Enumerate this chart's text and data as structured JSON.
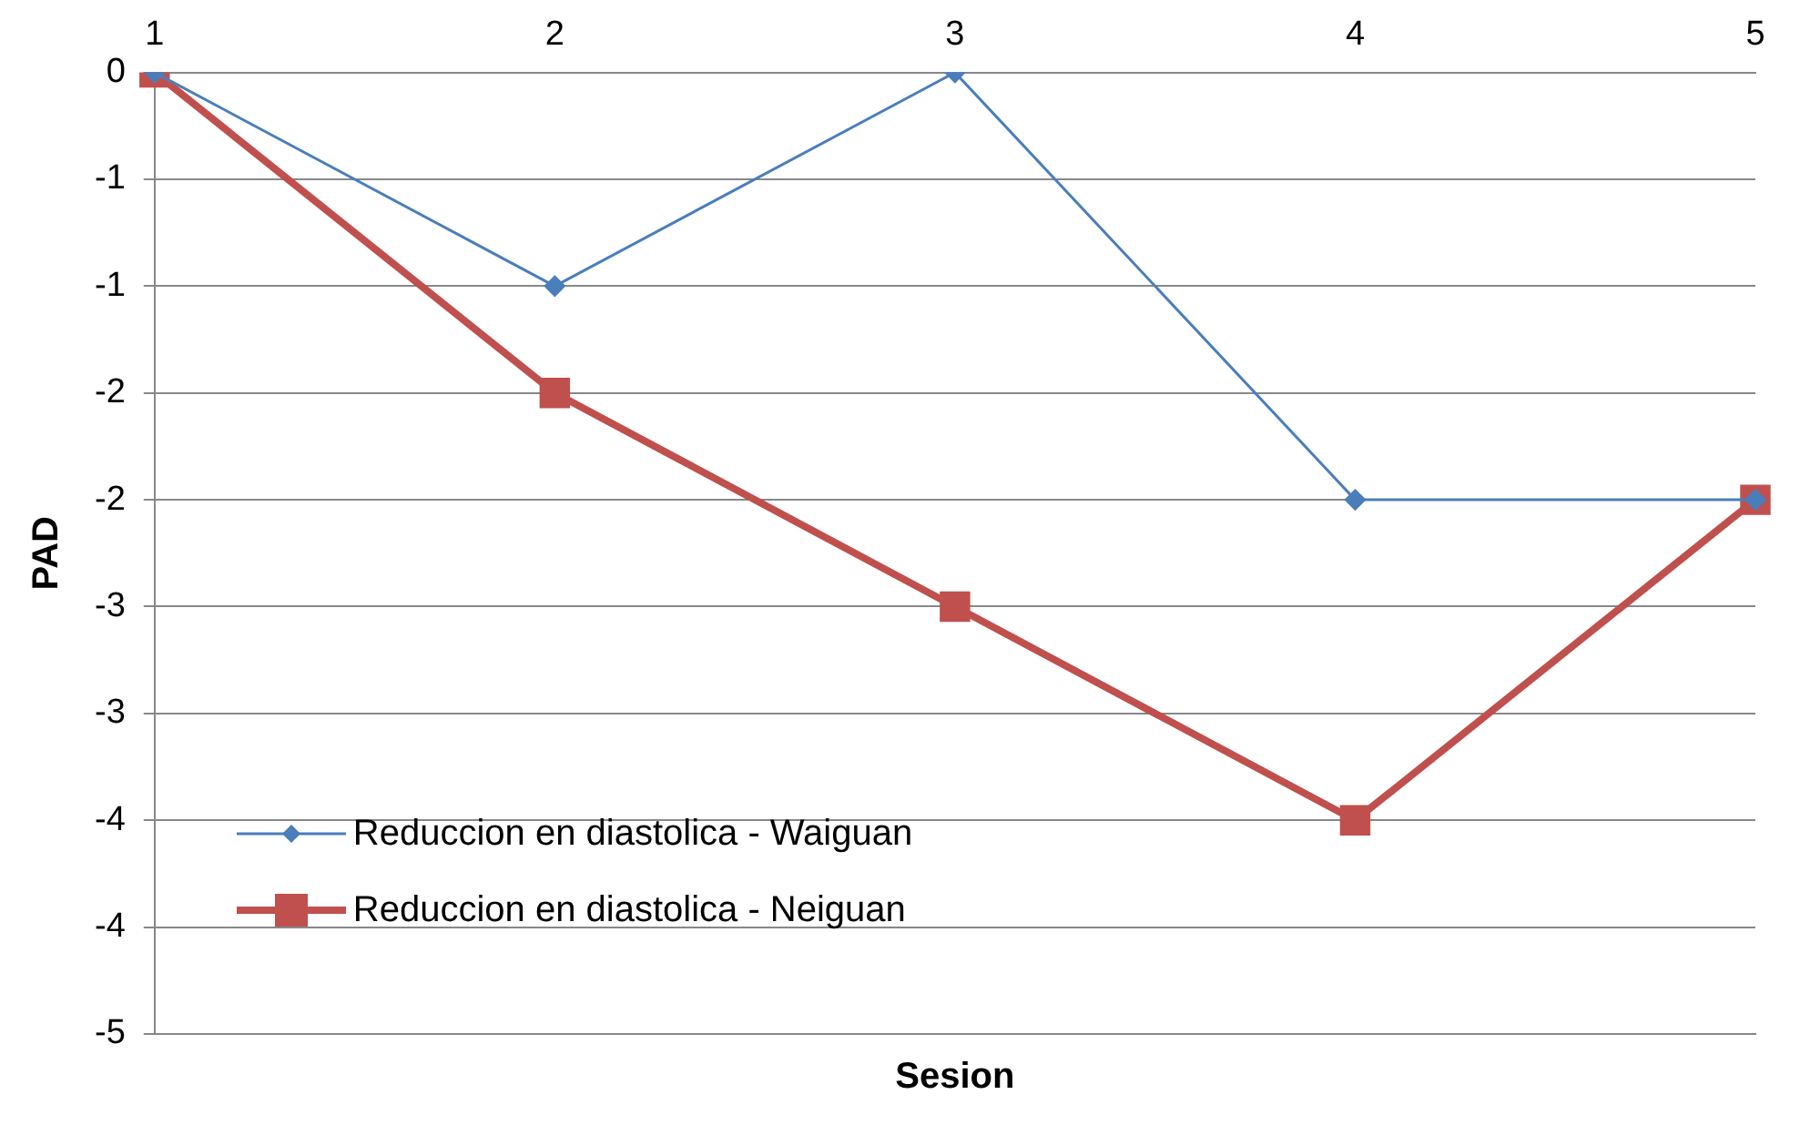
{
  "chart_data": {
    "type": "line",
    "xlabel": "Sesion",
    "ylabel": "PAD",
    "categories": [
      "1",
      "2",
      "3",
      "4",
      "5"
    ],
    "series": [
      {
        "name": "Reduccion en diastolica - Waiguan",
        "color": "#4a7ebb",
        "marker": "diamond",
        "values": [
          0,
          -1,
          0,
          -2,
          -2
        ]
      },
      {
        "name": "Reduccion en diastolica - Neiguan",
        "color": "#c0504d",
        "marker": "square",
        "values": [
          0,
          -1.5,
          -2.5,
          -3.5,
          -2
        ]
      }
    ],
    "ylim": [
      -4.5,
      0
    ],
    "yticks": [
      {
        "value": 0,
        "label": "0"
      },
      {
        "value": -0.5,
        "label": "-1"
      },
      {
        "value": -1,
        "label": "-1"
      },
      {
        "value": -1.5,
        "label": "-2"
      },
      {
        "value": -2,
        "label": "-2"
      },
      {
        "value": -2.5,
        "label": "-3"
      },
      {
        "value": -3,
        "label": "-3"
      },
      {
        "value": -3.5,
        "label": "-4"
      },
      {
        "value": -4,
        "label": "-4"
      },
      {
        "value": -4.5,
        "label": "-5"
      }
    ],
    "grid": "y",
    "legend": "bottom left",
    "line_style": "solid"
  }
}
